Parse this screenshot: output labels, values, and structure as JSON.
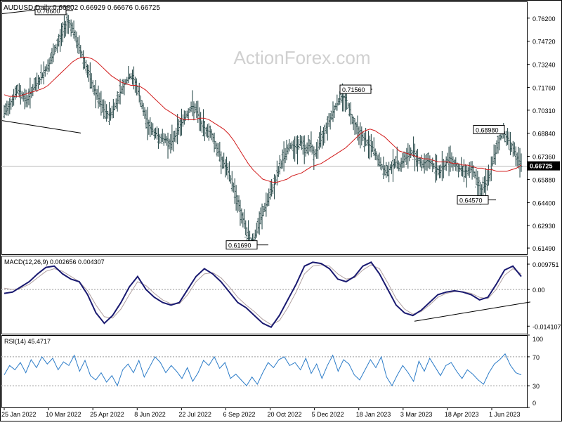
{
  "header": {
    "symbol_line": "AUDUSD,Daily  0.66802 0.66929 0.66676 0.66725"
  },
  "watermark": "ActionForex.com",
  "colors": {
    "bar": "#2f4f4f",
    "sma": "#d11a1a",
    "macd": "#191970",
    "signal": "#b0a0a0",
    "rsi": "#2c7cc8",
    "trendline": "#000000",
    "grid_dash": "#9e9e9e",
    "frame": "#000000",
    "watermark": "#d0d0d0"
  },
  "chart_data": [
    {
      "type": "bar",
      "name_on_chart": "AUDUSD,Daily",
      "last_values": {
        "open": 0.66802,
        "high": 0.66929,
        "low": 0.66676,
        "close": 0.66725
      },
      "current_price_label": "0.66725",
      "ylim": [
        0.6109,
        0.7727
      ],
      "ytick_labels": [
        "0.76200",
        "0.74720",
        "0.73240",
        "0.71760",
        "0.70310",
        "0.68840",
        "0.67360",
        "0.65880",
        "0.64400",
        "0.62930",
        "0.61490"
      ],
      "ytick_values": [
        0.762,
        0.7472,
        0.7324,
        0.7176,
        0.7031,
        0.6884,
        0.6736,
        0.6588,
        0.644,
        0.6293,
        0.6149
      ],
      "xtick_labels": [
        "25 Jan 2022",
        "10 Mar 2022",
        "25 Apr 2022",
        "8 Jun 2022",
        "22 Jul 2022",
        "6 Sep 2022",
        "20 Oct 2022",
        "5 Dec 2022",
        "18 Jan 2023",
        "3 Mar 2023",
        "18 Apr 2023",
        "1 Jun 2023"
      ],
      "close_approx": [
        0.701,
        0.706,
        0.711,
        0.716,
        0.713,
        0.709,
        0.715,
        0.719,
        0.723,
        0.728,
        0.733,
        0.739,
        0.746,
        0.753,
        0.76,
        0.757,
        0.748,
        0.741,
        0.733,
        0.724,
        0.716,
        0.71,
        0.704,
        0.7,
        0.702,
        0.708,
        0.716,
        0.721,
        0.725,
        0.722,
        0.713,
        0.702,
        0.694,
        0.69,
        0.687,
        0.685,
        0.684,
        0.681,
        0.687,
        0.693,
        0.698,
        0.702,
        0.706,
        0.701,
        0.693,
        0.69,
        0.689,
        0.681,
        0.674,
        0.668,
        0.662,
        0.654,
        0.644,
        0.634,
        0.625,
        0.619,
        0.624,
        0.633,
        0.641,
        0.648,
        0.655,
        0.664,
        0.672,
        0.678,
        0.681,
        0.679,
        0.683,
        0.677,
        0.682,
        0.674,
        0.681,
        0.688,
        0.695,
        0.701,
        0.707,
        0.712,
        0.711,
        0.701,
        0.694,
        0.689,
        0.685,
        0.681,
        0.679,
        0.672,
        0.667,
        0.663,
        0.667,
        0.67,
        0.668,
        0.672,
        0.674,
        0.677,
        0.672,
        0.668,
        0.671,
        0.669,
        0.666,
        0.664,
        0.668,
        0.673,
        0.67,
        0.666,
        0.664,
        0.664,
        0.667,
        0.659,
        0.652,
        0.655,
        0.662,
        0.673,
        0.684,
        0.689,
        0.685,
        0.68,
        0.673,
        0.667
      ],
      "sma_approx": [
        0.713,
        0.712,
        0.712,
        0.712,
        0.713,
        0.714,
        0.715,
        0.716,
        0.717,
        0.719,
        0.722,
        0.725,
        0.728,
        0.731,
        0.734,
        0.736,
        0.737,
        0.737,
        0.736,
        0.734,
        0.731,
        0.728,
        0.725,
        0.723,
        0.721,
        0.72,
        0.719,
        0.719,
        0.718,
        0.716,
        0.713,
        0.71,
        0.707,
        0.704,
        0.702,
        0.7,
        0.698,
        0.697,
        0.697,
        0.697,
        0.698,
        0.698,
        0.697,
        0.695,
        0.693,
        0.691,
        0.688,
        0.684,
        0.679,
        0.674,
        0.669,
        0.665,
        0.662,
        0.659,
        0.658,
        0.657,
        0.657,
        0.658,
        0.659,
        0.661,
        0.662,
        0.663,
        0.665,
        0.667,
        0.668,
        0.669,
        0.671,
        0.673,
        0.675,
        0.677,
        0.679,
        0.682,
        0.685,
        0.688,
        0.69,
        0.691,
        0.69,
        0.688,
        0.686,
        0.683,
        0.68,
        0.677,
        0.676,
        0.675,
        0.674,
        0.673,
        0.672,
        0.672,
        0.671,
        0.67,
        0.67,
        0.67,
        0.669,
        0.669,
        0.668,
        0.668,
        0.667,
        0.666,
        0.666,
        0.665,
        0.665,
        0.664,
        0.664,
        0.664,
        0.665,
        0.666,
        0.668
      ],
      "annotations": [
        {
          "text": "0.76600",
          "value": 0.766
        },
        {
          "text": "0.71560",
          "value": 0.7156
        },
        {
          "text": "0.68980",
          "value": 0.6898
        },
        {
          "text": "0.64570",
          "value": 0.6457
        },
        {
          "text": "0.61690",
          "value": 0.6169
        }
      ],
      "grid": false,
      "watermark": true
    },
    {
      "type": "line",
      "label_text": "MACD(12,26,9) 0.002656 0.004307",
      "ylim": [
        -0.017,
        0.013
      ],
      "ytick_labels": [
        "0.009751",
        "0.00",
        "-0.014107"
      ],
      "ytick_values": [
        0.009751,
        0.0,
        -0.014107
      ],
      "macd_approx": [
        -0.0015,
        -0.001,
        0.001,
        0.003,
        0.006,
        0.0085,
        0.009,
        0.006,
        0.004,
        0.003,
        -0.002,
        -0.009,
        -0.013,
        -0.01,
        -0.005,
        0.001,
        0.005,
        0.0,
        -0.003,
        -0.005,
        -0.006,
        -0.005,
        0.0,
        0.005,
        0.008,
        0.006,
        0.003,
        -0.001,
        -0.005,
        -0.007,
        -0.01,
        -0.013,
        -0.0145,
        -0.01,
        -0.004,
        0.002,
        0.009,
        0.0105,
        0.01,
        0.008,
        0.004,
        0.003,
        0.005,
        0.009,
        0.0105,
        0.006,
        0.0,
        -0.006,
        -0.009,
        -0.01,
        -0.008,
        -0.005,
        -0.002,
        -0.001,
        -0.0005,
        -0.001,
        -0.002,
        -0.004,
        -0.003,
        0.002,
        0.0075,
        0.009,
        0.005
      ],
      "signal_approx": [
        0.0005,
        0.0,
        0.0005,
        0.002,
        0.0045,
        0.007,
        0.008,
        0.007,
        0.005,
        0.003,
        -0.0005,
        -0.006,
        -0.0105,
        -0.011,
        -0.0075,
        -0.002,
        0.003,
        0.0015,
        -0.0015,
        -0.004,
        -0.0055,
        -0.0055,
        -0.002,
        0.003,
        0.006,
        0.0065,
        0.0045,
        0.001,
        -0.003,
        -0.006,
        -0.0085,
        -0.0115,
        -0.0135,
        -0.012,
        -0.007,
        -0.001,
        0.006,
        0.009,
        0.0095,
        0.009,
        0.006,
        0.004,
        0.0045,
        0.0075,
        0.0095,
        0.008,
        0.0025,
        -0.0035,
        -0.0075,
        -0.0095,
        -0.0085,
        -0.006,
        -0.003,
        -0.0015,
        -0.0008,
        -0.0008,
        -0.0015,
        -0.003,
        -0.0035,
        0.0,
        0.0055,
        0.008,
        0.006
      ],
      "zero_line": true
    },
    {
      "type": "line",
      "label_text": "RSI(14) 45.4717",
      "ylim": [
        0,
        100
      ],
      "ytick_labels": [
        "100",
        "70",
        "30",
        "0"
      ],
      "ytick_values": [
        100,
        70,
        30,
        0
      ],
      "rsi_approx": [
        45,
        58,
        52,
        62,
        48,
        66,
        55,
        70,
        60,
        68,
        52,
        63,
        58,
        72,
        50,
        65,
        44,
        38,
        48,
        35,
        44,
        30,
        52,
        60,
        48,
        65,
        42,
        56,
        70,
        62,
        48,
        58,
        50,
        40,
        55,
        36,
        48,
        65,
        58,
        70,
        54,
        62,
        40,
        46,
        38,
        30,
        42,
        32,
        48,
        62,
        55,
        66,
        70,
        58,
        62,
        52,
        68,
        47,
        60,
        40,
        58,
        72,
        50,
        66,
        60,
        45,
        38,
        52,
        66,
        55,
        70,
        42,
        30,
        45,
        58,
        48,
        36,
        64,
        50,
        68,
        56,
        44,
        58,
        62,
        50,
        40,
        52,
        46,
        38,
        32,
        48,
        60,
        66,
        74,
        58,
        48,
        45
      ],
      "levels": [
        70,
        30
      ]
    }
  ]
}
